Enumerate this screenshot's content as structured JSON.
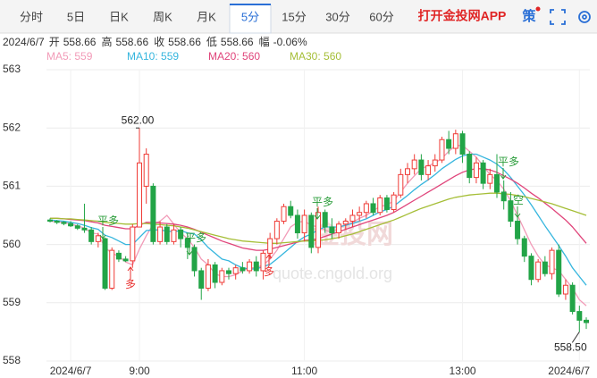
{
  "tabs": [
    {
      "label": "分时",
      "active": false
    },
    {
      "label": "5日",
      "active": false
    },
    {
      "label": "日K",
      "active": false
    },
    {
      "label": "周K",
      "active": false
    },
    {
      "label": "月K",
      "active": false
    },
    {
      "label": "5分",
      "active": true
    },
    {
      "label": "15分",
      "active": false
    },
    {
      "label": "30分",
      "active": false
    },
    {
      "label": "60分",
      "active": false
    }
  ],
  "app_link": "打开金投网APP",
  "strategy": "策",
  "info": {
    "date": "2024/6/7",
    "items": [
      {
        "label": "开",
        "value": 558.66
      },
      {
        "label": "高",
        "value": 558.66
      },
      {
        "label": "收",
        "value": 558.66
      },
      {
        "label": "低",
        "value": 558.66
      },
      {
        "label": "幅",
        "value": "-0.06%"
      }
    ]
  },
  "watermark": {
    "brand": "金投网",
    "url": "quote.cngold.org"
  },
  "chart_data": {
    "type": "candlestick",
    "categories": [
      null,
      null,
      null,
      "2024/6/7",
      null,
      null,
      null,
      null,
      null,
      null,
      null,
      null,
      null,
      "9:00",
      null,
      null,
      null,
      null,
      null,
      null,
      null,
      null,
      null,
      null,
      null,
      null,
      null,
      null,
      null,
      null,
      null,
      null,
      null,
      null,
      null,
      null,
      null,
      "11:00",
      null,
      null,
      null,
      null,
      null,
      null,
      null,
      null,
      null,
      null,
      null,
      null,
      null,
      null,
      null,
      null,
      null,
      null,
      null,
      null,
      null,
      null,
      "13:00",
      null,
      null,
      null,
      null,
      null,
      null,
      null,
      null,
      null,
      null,
      null,
      null,
      null,
      null,
      null,
      null,
      "2024/6/7",
      null
    ],
    "open": [
      560.42,
      560.4,
      560.38,
      560.36,
      560.32,
      560.28,
      560.25,
      560.05,
      560.1,
      559.25,
      559.85,
      559.75,
      559.72,
      560.3,
      561.0,
      561.0,
      560.05,
      560.3,
      560.05,
      560.25,
      560.1,
      559.95,
      559.55,
      559.25,
      559.65,
      559.35,
      559.55,
      559.5,
      559.6,
      559.55,
      559.7,
      559.55,
      559.85,
      560.1,
      560.4,
      560.65,
      560.5,
      560.2,
      560.5,
      559.95,
      560.55,
      560.3,
      560.2,
      560.35,
      560.4,
      560.5,
      560.55,
      560.7,
      560.55,
      560.8,
      560.6,
      560.85,
      561.2,
      561.3,
      561.45,
      561.2,
      561.35,
      561.45,
      561.8,
      561.65,
      561.9,
      561.55,
      561.15,
      561.4,
      561.05,
      561.2,
      560.9,
      560.75,
      560.4,
      560.1,
      559.8,
      559.4,
      559.7,
      559.5,
      559.9,
      559.15,
      559.3,
      558.85,
      558.7
    ],
    "high": [
      560.45,
      560.42,
      560.4,
      560.4,
      560.35,
      560.7,
      560.3,
      560.2,
      560.12,
      559.95,
      559.9,
      559.8,
      560.35,
      562.0,
      561.65,
      561.05,
      560.4,
      560.35,
      560.35,
      560.3,
      560.2,
      560.0,
      559.6,
      559.75,
      559.7,
      559.6,
      559.6,
      559.65,
      559.7,
      559.75,
      559.8,
      559.9,
      560.2,
      560.45,
      560.7,
      560.75,
      560.6,
      560.6,
      560.55,
      560.65,
      560.6,
      560.45,
      560.4,
      560.45,
      560.6,
      560.65,
      560.75,
      560.8,
      560.85,
      560.85,
      560.9,
      561.3,
      561.4,
      561.55,
      561.55,
      561.45,
      561.55,
      561.85,
      561.95,
      561.97,
      561.95,
      561.6,
      561.5,
      561.45,
      561.3,
      561.55,
      561.1,
      560.9,
      560.5,
      560.15,
      559.85,
      559.75,
      559.8,
      559.95,
      560.0,
      559.4,
      559.35,
      558.95,
      558.75
    ],
    "low": [
      560.38,
      560.35,
      560.33,
      560.3,
      560.25,
      560.2,
      560.0,
      559.95,
      559.22,
      559.22,
      559.7,
      559.7,
      559.6,
      560.3,
      560.7,
      560.0,
      560.0,
      560.0,
      560.0,
      559.95,
      559.75,
      559.45,
      559.05,
      559.2,
      559.25,
      559.3,
      559.4,
      559.4,
      559.5,
      559.5,
      559.45,
      559.4,
      559.75,
      560.0,
      560.35,
      560.45,
      560.1,
      560.05,
      559.85,
      559.85,
      560.2,
      560.1,
      560.1,
      560.25,
      560.3,
      560.4,
      560.45,
      560.5,
      560.5,
      560.55,
      560.55,
      560.8,
      561.05,
      561.2,
      561.1,
      561.1,
      561.25,
      561.4,
      561.55,
      561.55,
      561.4,
      561.05,
      561.05,
      560.95,
      560.95,
      560.8,
      560.6,
      560.3,
      560.0,
      559.7,
      559.3,
      559.35,
      559.45,
      559.4,
      559.1,
      559.05,
      558.8,
      558.5,
      558.55
    ],
    "close": [
      560.4,
      560.38,
      560.36,
      560.32,
      560.28,
      560.25,
      560.05,
      560.15,
      559.25,
      559.9,
      559.75,
      559.72,
      560.3,
      561.4,
      561.55,
      560.05,
      560.3,
      560.05,
      560.25,
      560.1,
      559.95,
      559.55,
      559.25,
      559.65,
      559.35,
      559.55,
      559.5,
      559.6,
      559.55,
      559.7,
      559.55,
      559.85,
      560.1,
      560.4,
      560.65,
      560.5,
      560.2,
      560.5,
      559.95,
      560.55,
      560.3,
      560.2,
      560.35,
      560.4,
      560.5,
      560.55,
      560.7,
      560.55,
      560.8,
      560.6,
      560.85,
      561.2,
      561.3,
      561.45,
      561.2,
      561.35,
      561.45,
      561.8,
      561.65,
      561.9,
      561.55,
      561.15,
      561.4,
      561.05,
      561.2,
      560.9,
      560.75,
      560.4,
      560.1,
      559.8,
      559.4,
      559.7,
      559.5,
      559.9,
      559.15,
      559.3,
      558.85,
      558.7,
      558.66
    ],
    "up_color": "#ef3b36",
    "down_color": "#22a447",
    "series": [
      {
        "name": "MA5: 559",
        "color": "#f29bb8",
        "values": [
          560.4,
          560.39,
          560.38,
          560.35,
          560.32,
          560.28,
          560.2,
          560.18,
          559.95,
          559.85,
          559.8,
          559.7,
          559.65,
          559.92,
          560.15,
          560.35,
          560.4,
          560.5,
          560.35,
          560.2,
          560.1,
          559.95,
          559.75,
          559.65,
          559.5,
          559.45,
          559.45,
          559.48,
          559.55,
          559.6,
          559.6,
          559.65,
          559.75,
          559.9,
          560.1,
          560.3,
          560.38,
          560.4,
          560.33,
          560.3,
          560.25,
          560.2,
          560.28,
          560.35,
          560.38,
          560.45,
          560.5,
          560.58,
          560.65,
          560.68,
          560.75,
          560.9,
          561.05,
          561.18,
          561.3,
          561.35,
          561.4,
          561.48,
          561.6,
          561.7,
          561.7,
          561.6,
          561.5,
          561.35,
          561.2,
          561.1,
          560.95,
          560.75,
          560.5,
          560.25,
          560.0,
          559.8,
          559.65,
          559.6,
          559.55,
          559.4,
          559.25,
          559.05,
          558.95
        ]
      },
      {
        "name": "MA10: 559",
        "color": "#36b6de",
        "values": [
          560.42,
          560.41,
          560.4,
          560.38,
          560.36,
          560.33,
          560.29,
          560.26,
          560.16,
          560.12,
          560.06,
          560.0,
          560.0,
          560.12,
          560.24,
          560.25,
          560.25,
          560.23,
          560.22,
          560.24,
          560.2,
          560.18,
          560.08,
          559.95,
          559.85,
          559.75,
          559.72,
          559.65,
          559.6,
          559.58,
          559.58,
          559.62,
          559.66,
          559.75,
          559.85,
          559.95,
          560.05,
          560.13,
          560.18,
          560.25,
          560.3,
          560.3,
          560.3,
          560.33,
          560.36,
          560.4,
          560.44,
          560.5,
          560.56,
          560.6,
          560.66,
          560.75,
          560.84,
          560.94,
          561.03,
          561.11,
          561.2,
          561.3,
          561.38,
          561.46,
          561.52,
          561.55,
          561.55,
          561.5,
          561.45,
          561.38,
          561.28,
          561.15,
          561.0,
          560.85,
          560.68,
          560.5,
          560.32,
          560.15,
          559.98,
          559.8,
          559.6,
          559.45,
          559.3
        ]
      },
      {
        "name": "MA20: 560",
        "color": "#e0457b",
        "values": [
          560.45,
          560.45,
          560.44,
          560.43,
          560.42,
          560.41,
          560.39,
          560.37,
          560.33,
          560.31,
          560.29,
          560.27,
          560.27,
          560.33,
          560.38,
          560.38,
          560.37,
          560.36,
          560.35,
          560.33,
          560.3,
          560.26,
          560.21,
          560.16,
          560.11,
          560.06,
          560.02,
          559.98,
          559.94,
          559.92,
          559.9,
          559.9,
          559.92,
          559.95,
          559.98,
          560.01,
          560.04,
          560.07,
          560.08,
          560.1,
          560.14,
          560.18,
          560.22,
          560.26,
          560.3,
          560.34,
          560.38,
          560.42,
          560.46,
          560.5,
          560.55,
          560.62,
          560.69,
          560.76,
          560.83,
          560.9,
          560.97,
          561.04,
          561.11,
          561.18,
          561.24,
          561.28,
          561.3,
          561.3,
          561.28,
          561.24,
          561.18,
          561.12,
          561.05,
          560.97,
          560.88,
          560.8,
          560.71,
          560.62,
          560.52,
          560.42,
          560.3,
          560.16,
          560.02
        ]
      },
      {
        "name": "MA30: 560",
        "color": "#a5be36",
        "values": [
          560.45,
          560.45,
          560.44,
          560.44,
          560.43,
          560.42,
          560.41,
          560.4,
          560.38,
          560.37,
          560.36,
          560.35,
          560.35,
          560.36,
          560.36,
          560.35,
          560.34,
          560.33,
          560.32,
          560.3,
          560.28,
          560.25,
          560.22,
          560.19,
          560.16,
          560.13,
          560.1,
          560.08,
          560.06,
          560.05,
          560.04,
          560.03,
          560.02,
          560.02,
          560.03,
          560.04,
          560.05,
          560.06,
          560.06,
          560.07,
          560.08,
          560.1,
          560.12,
          560.15,
          560.18,
          560.22,
          560.26,
          560.3,
          560.34,
          560.38,
          560.42,
          560.47,
          560.52,
          560.57,
          560.62,
          560.66,
          560.7,
          560.74,
          560.78,
          560.81,
          560.83,
          560.85,
          560.86,
          560.87,
          560.88,
          560.88,
          560.87,
          560.86,
          560.84,
          560.82,
          560.79,
          560.76,
          560.73,
          560.7,
          560.66,
          560.62,
          560.58,
          560.54,
          560.5
        ]
      }
    ],
    "ylim": [
      558,
      563
    ],
    "yticks": [
      558,
      559,
      560,
      561,
      562,
      563
    ],
    "grid": true,
    "high_label": {
      "value": 562,
      "label": "562.00"
    },
    "low_label": {
      "value": 558.5,
      "label": "558.50"
    },
    "signals": [
      "平多",
      "多",
      "平多",
      "多",
      "平多",
      "平多",
      "空"
    ]
  }
}
